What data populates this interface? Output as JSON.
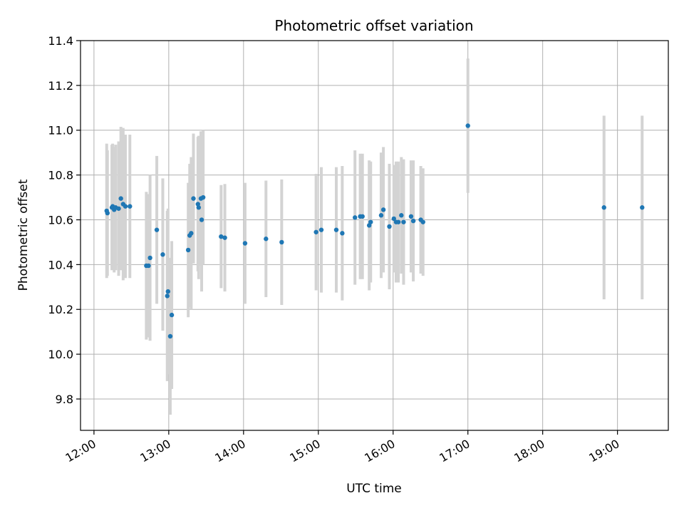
{
  "chart_data": {
    "type": "scatter",
    "title": "Photometric offset variation",
    "xlabel": "UTC time",
    "ylabel": "Photometric offset",
    "x_unit": "UTC hours",
    "xlim": [
      11.82,
      19.68
    ],
    "ylim": [
      9.66,
      11.4
    ],
    "x_ticks": [
      12,
      13,
      14,
      15,
      16,
      17,
      18,
      19
    ],
    "x_tick_labels": [
      "12:00",
      "13:00",
      "14:00",
      "15:00",
      "16:00",
      "17:00",
      "18:00",
      "19:00"
    ],
    "y_ticks": [
      9.8,
      10.0,
      10.2,
      10.4,
      10.6,
      10.8,
      11.0,
      11.2,
      11.4
    ],
    "y_tick_labels": [
      "9.8",
      "10.0",
      "10.2",
      "10.4",
      "10.6",
      "10.8",
      "11.0",
      "11.2",
      "11.4"
    ],
    "grid": true,
    "colors": {
      "points": "#1f77b4",
      "error_bars": "#d3d3d3",
      "grid": "#b0b0b0"
    },
    "series": [
      {
        "x": [
          12.17,
          12.18,
          12.24,
          12.25,
          12.27,
          12.29,
          12.33,
          12.36,
          12.39,
          12.42,
          12.48,
          12.7,
          12.73,
          12.75,
          12.84,
          12.92,
          12.98,
          12.99,
          13.02,
          13.04,
          13.26,
          13.28,
          13.3,
          13.33,
          13.39,
          13.4,
          13.43,
          13.44,
          13.46,
          13.7,
          13.75,
          14.02,
          14.3,
          14.51,
          14.97,
          15.04,
          15.24,
          15.32,
          15.49,
          15.56,
          15.59,
          15.68,
          15.7,
          15.84,
          15.87,
          15.95,
          16.01,
          16.04,
          16.07,
          16.11,
          16.14,
          16.24,
          16.27,
          16.37,
          16.4,
          17.0,
          18.82,
          19.33
        ],
        "y": [
          10.64,
          10.63,
          10.655,
          10.66,
          10.645,
          10.655,
          10.65,
          10.695,
          10.67,
          10.66,
          10.66,
          10.395,
          10.395,
          10.43,
          10.555,
          10.445,
          10.26,
          10.28,
          10.08,
          10.175,
          10.465,
          10.53,
          10.54,
          10.695,
          10.67,
          10.655,
          10.695,
          10.6,
          10.7,
          10.525,
          10.52,
          10.495,
          10.515,
          10.5,
          10.545,
          10.555,
          10.555,
          10.54,
          10.61,
          10.615,
          10.615,
          10.575,
          10.59,
          10.62,
          10.645,
          10.57,
          10.605,
          10.59,
          10.59,
          10.62,
          10.59,
          10.615,
          10.595,
          10.6,
          10.59,
          11.02,
          10.655,
          10.655
        ],
        "err": [
          0.3,
          0.28,
          0.28,
          0.28,
          0.28,
          0.28,
          0.3,
          0.32,
          0.34,
          0.32,
          0.32,
          0.33,
          0.32,
          0.37,
          0.33,
          0.34,
          0.38,
          0.37,
          0.35,
          0.33,
          0.3,
          0.32,
          0.34,
          0.29,
          0.3,
          0.32,
          0.3,
          0.32,
          0.3,
          0.23,
          0.24,
          0.27,
          0.26,
          0.28,
          0.26,
          0.28,
          0.28,
          0.3,
          0.3,
          0.28,
          0.28,
          0.29,
          0.27,
          0.28,
          0.28,
          0.28,
          0.24,
          0.27,
          0.27,
          0.26,
          0.28,
          0.25,
          0.27,
          0.24,
          0.24,
          0.3,
          0.41,
          0.41
        ]
      }
    ]
  }
}
